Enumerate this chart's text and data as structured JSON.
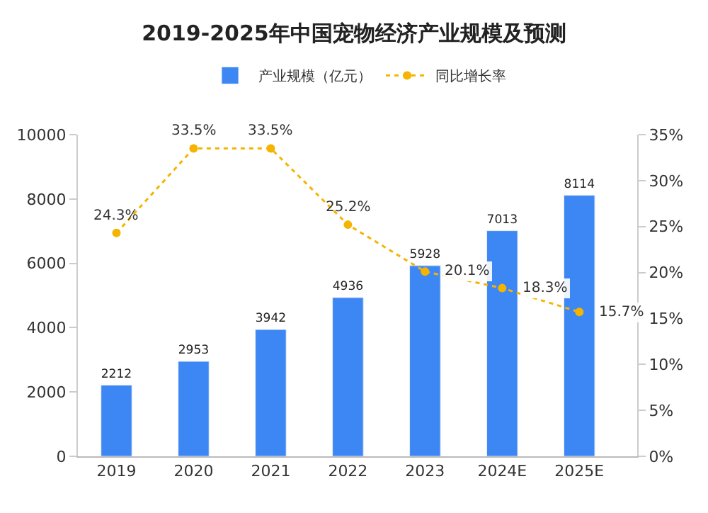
{
  "chart_data": {
    "type": "bar",
    "title": "2019-2025年中国宠物经济产业规模及预测",
    "categories": [
      "2019",
      "2020",
      "2021",
      "2022",
      "2023",
      "2024E",
      "2025E"
    ],
    "series": [
      {
        "name": "产业规模（亿元）",
        "color": "#3d87f5",
        "values": [
          2212,
          2953,
          3942,
          4936,
          5928,
          7013,
          8114
        ],
        "value_labels": [
          "2212",
          "2953",
          "3942",
          "4936",
          "5928",
          "7013",
          "8114"
        ]
      },
      {
        "name": "同比增长率",
        "type": "line",
        "axis": "y2",
        "color": "#f5b400",
        "line_style": "dotted",
        "marker": "circle",
        "values": [
          24.3,
          33.5,
          33.5,
          25.2,
          20.1,
          18.3,
          15.7
        ],
        "value_labels": [
          "24.3%",
          "33.5%",
          "33.5%",
          "25.2%",
          "20.1%",
          "18.3%",
          "15.7%"
        ]
      }
    ],
    "ylim": [
      0,
      10000
    ],
    "yticks": [
      0,
      2000,
      4000,
      6000,
      8000,
      10000
    ],
    "y2lim": [
      0,
      35
    ],
    "y2ticks": [
      {
        "value": 0,
        "label": "0%"
      },
      {
        "value": 5,
        "label": "5%"
      },
      {
        "value": 10,
        "label": "10%"
      },
      {
        "value": 15,
        "label": "15%"
      },
      {
        "value": 20,
        "label": "20%"
      },
      {
        "value": 25,
        "label": "25%"
      },
      {
        "value": 30,
        "label": "30%"
      },
      {
        "value": 35,
        "label": "35%"
      }
    ],
    "legend": "top"
  }
}
